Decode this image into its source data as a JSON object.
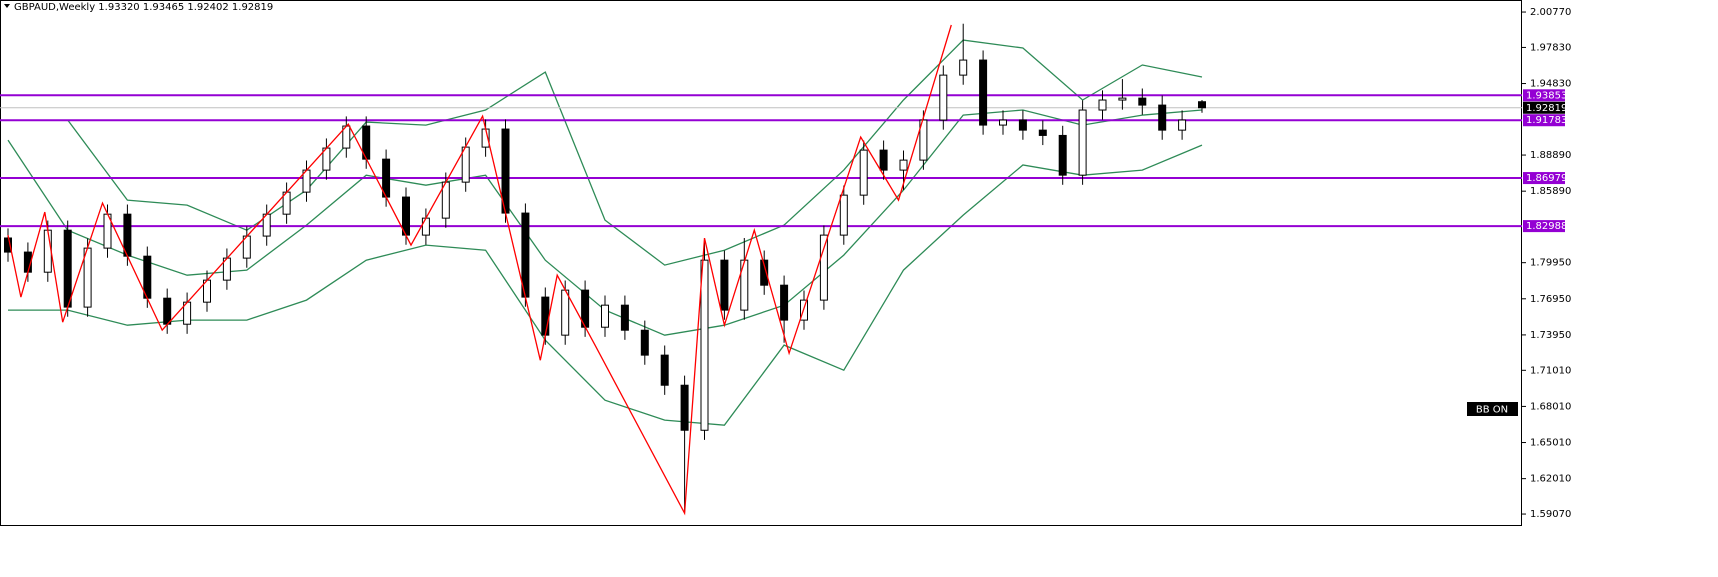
{
  "chart_data": {
    "type": "candlestick",
    "title": "GBPAUD,Weekly 1.93320 1.93465 1.92402 1.92819",
    "open": [
      1.82,
      1.8083,
      1.7916,
      1.8265,
      1.7626,
      1.8116,
      1.8398,
      1.8049,
      1.77,
      1.7484,
      1.7667,
      1.785,
      1.8033,
      1.8216,
      1.8398,
      1.8581,
      1.8764,
      1.8947,
      1.913,
      1.8855,
      1.854,
      1.8224,
      1.8365,
      1.8664,
      1.8955,
      1.9105,
      1.8407,
      1.7709,
      1.7393,
      1.7767,
      1.7459,
      1.7642,
      1.7434,
      1.7227,
      1.6977,
      1.6603,
      1.8016,
      1.7601,
      1.8016,
      1.7808,
      1.7518,
      1.7684,
      1.8224,
      1.8556,
      1.893,
      1.8764,
      1.8847,
      1.918,
      1.9553,
      1.9678,
      1.9138,
      1.918,
      1.9096,
      1.9052,
      1.8722,
      1.9263,
      1.9346,
      1.9362,
      1.9304,
      1.9096,
      1.9332
    ],
    "high": [
      1.828,
      1.8163,
      1.8345,
      1.8345,
      1.8196,
      1.8478,
      1.8478,
      1.8129,
      1.778,
      1.7747,
      1.793,
      1.8113,
      1.8296,
      1.8478,
      1.8661,
      1.8844,
      1.9027,
      1.921,
      1.921,
      1.8935,
      1.862,
      1.8445,
      1.8744,
      1.9035,
      1.9185,
      1.9185,
      1.8487,
      1.7789,
      1.7847,
      1.7847,
      1.7722,
      1.7722,
      1.7514,
      1.7307,
      1.7057,
      1.82,
      1.8096,
      1.82,
      1.8096,
      1.7888,
      1.7764,
      1.8304,
      1.8636,
      1.901,
      1.901,
      1.8927,
      1.926,
      1.9633,
      1.998,
      1.9758,
      1.926,
      1.926,
      1.9176,
      1.9132,
      1.9343,
      1.9426,
      1.952,
      1.9442,
      1.9384,
      1.926,
      1.93465
    ],
    "low": [
      1.8003,
      1.7836,
      1.7836,
      1.7546,
      1.7546,
      1.8036,
      1.7969,
      1.762,
      1.7404,
      1.7404,
      1.7587,
      1.777,
      1.7953,
      1.8136,
      1.8318,
      1.8501,
      1.8684,
      1.8867,
      1.8775,
      1.846,
      1.8144,
      1.8144,
      1.8285,
      1.8584,
      1.8875,
      1.8327,
      1.7629,
      1.7313,
      1.7313,
      1.7379,
      1.7379,
      1.7354,
      1.7147,
      1.6897,
      1.592,
      1.6523,
      1.7521,
      1.7521,
      1.7728,
      1.733,
      1.7438,
      1.7604,
      1.8144,
      1.8476,
      1.8684,
      1.86,
      1.8767,
      1.91,
      1.9473,
      1.9058,
      1.9058,
      1.9016,
      1.8972,
      1.8642,
      1.8642,
      1.9183,
      1.9266,
      1.9224,
      1.9016,
      1.9016,
      1.92402
    ],
    "close": [
      1.8083,
      1.7916,
      1.8265,
      1.7626,
      1.8116,
      1.8398,
      1.8049,
      1.77,
      1.7484,
      1.7667,
      1.785,
      1.8033,
      1.8216,
      1.8398,
      1.8581,
      1.8764,
      1.8947,
      1.913,
      1.8855,
      1.854,
      1.8224,
      1.8365,
      1.8664,
      1.8955,
      1.9105,
      1.8407,
      1.7709,
      1.7393,
      1.7767,
      1.7459,
      1.7642,
      1.7434,
      1.7227,
      1.6977,
      1.6603,
      1.8016,
      1.7601,
      1.8016,
      1.7808,
      1.7518,
      1.7684,
      1.8224,
      1.8556,
      1.893,
      1.8764,
      1.8847,
      1.918,
      1.9553,
      1.9678,
      1.9138,
      1.918,
      1.9096,
      1.9052,
      1.8722,
      1.9263,
      1.9346,
      1.9362,
      1.9304,
      1.9096,
      1.918,
      1.92819
    ],
    "up_color": "#ffffff",
    "down_color": "#000000",
    "ylim": [
      1.5816,
      2.0177
    ],
    "yticks": [
      {
        "value": 2.0077,
        "label": "2.00770"
      },
      {
        "value": 1.9783,
        "label": "1.97830"
      },
      {
        "value": 1.9483,
        "label": "1.94830"
      },
      {
        "value": 1.8889,
        "label": "1.88890"
      },
      {
        "value": 1.8589,
        "label": "1.85890"
      },
      {
        "value": 1.7995,
        "label": "1.79950"
      },
      {
        "value": 1.7695,
        "label": "1.76950"
      },
      {
        "value": 1.7395,
        "label": "1.73950"
      },
      {
        "value": 1.7101,
        "label": "1.71010"
      },
      {
        "value": 1.6801,
        "label": "1.68010"
      },
      {
        "value": 1.6501,
        "label": "1.65010"
      },
      {
        "value": 1.6201,
        "label": "1.62010"
      },
      {
        "value": 1.5907,
        "label": "1.59070"
      }
    ],
    "zigzag": {
      "color": "#ff0000",
      "x": [
        0,
        0.65,
        1.85,
        2.75,
        4.75,
        7.75,
        17.1,
        20.25,
        23.85,
        26.75,
        27.6,
        29.5,
        34,
        35,
        36,
        37.5,
        39.25,
        42.85,
        44.75,
        47.4
      ],
      "values": [
        1.8224,
        1.7709,
        1.8415,
        1.7501,
        1.849,
        1.7435,
        1.9146,
        1.8141,
        1.9213,
        1.7185,
        1.7891,
        1.731,
        1.5914,
        1.8199,
        1.7476,
        1.8265,
        1.7243,
        1.9038,
        1.8515,
        1.9969
      ]
    },
    "bands": {
      "color": "#2e8b57",
      "x": [
        0,
        3,
        6,
        9,
        12,
        15,
        18,
        21,
        24,
        27,
        30,
        33,
        36,
        39,
        42,
        45,
        48,
        51,
        54,
        57,
        60
      ],
      "series": [
        {
          "values": [
            null,
            1.918,
            1.8515,
            1.8473,
            1.8265,
            1.8598,
            1.9163,
            1.9138,
            1.9263,
            1.9578,
            1.8349,
            1.7975,
            1.8099,
            1.8307,
            1.8764,
            1.9346,
            1.9844,
            1.9778,
            1.9346,
            1.9637,
            1.9537
          ]
        },
        {
          "values": [
            1.9013,
            1.8265,
            1.8058,
            1.7891,
            1.7933,
            1.8307,
            1.8722,
            1.8639,
            1.8722,
            1.8016,
            1.7601,
            1.7393,
            1.7476,
            1.7642,
            1.8058,
            1.8598,
            1.9221,
            1.9263,
            1.9138,
            1.9221,
            1.9263
          ]
        },
        {
          "values": [
            1.7601,
            1.7601,
            1.7476,
            1.7518,
            1.7518,
            1.7684,
            1.8016,
            1.8141,
            1.8099,
            1.7351,
            1.6853,
            1.6687,
            1.6645,
            1.731,
            1.7102,
            1.7933,
            1.839,
            1.8806,
            1.8722,
            1.8764,
            1.8972
          ]
        }
      ]
    },
    "levels": {
      "color": "#9400d3",
      "values": [
        1.93853,
        1.91783,
        1.86979,
        1.82988
      ]
    },
    "last_price": 1.92819,
    "annotation": "BB ON"
  }
}
